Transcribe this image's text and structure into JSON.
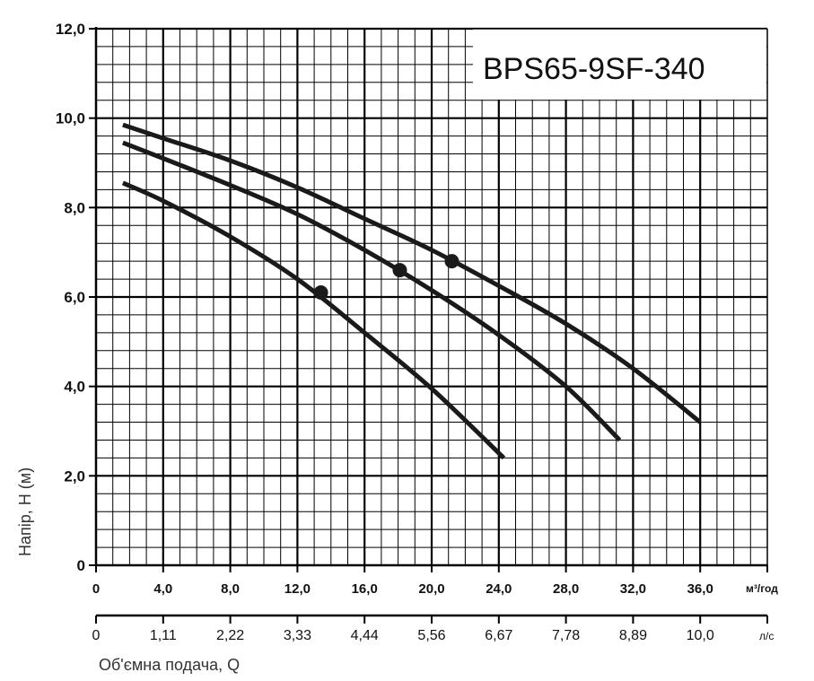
{
  "chart_data": {
    "type": "line",
    "title": "BPS65-9SF-340",
    "ylabel": "Напір, H (м)",
    "xlabel": "Об'ємна  подача, Q",
    "x_unit": "м³/год",
    "x2_unit": "л/с",
    "xlim": [
      0,
      40
    ],
    "ylim": [
      0,
      12
    ],
    "grid": true,
    "y_ticks": [
      "0",
      "2,0",
      "4,0",
      "6,0",
      "8,0",
      "10,0",
      "12,0"
    ],
    "x_ticks": [
      "0",
      "4,0",
      "8,0",
      "12,0",
      "16,0",
      "20,0",
      "24,0",
      "28,0",
      "32,0",
      "36,0"
    ],
    "x2_ticks": [
      "0",
      "1,11",
      "2,22",
      "3,33",
      "4,44",
      "5,56",
      "6,67",
      "7,78",
      "8,89",
      "10,0"
    ],
    "series": [
      {
        "x": [
          1.6,
          4,
          8,
          12,
          16,
          20,
          24.3
        ],
        "values": [
          8.55,
          8.15,
          7.35,
          6.4,
          5.2,
          3.95,
          2.4
        ],
        "marker": {
          "x": 13.4,
          "y": 6.1
        }
      },
      {
        "x": [
          1.6,
          4,
          8,
          12,
          16,
          20,
          24,
          28,
          31.2
        ],
        "values": [
          9.45,
          9.1,
          8.5,
          7.85,
          7.05,
          6.15,
          5.15,
          4.0,
          2.8
        ],
        "marker": {
          "x": 18.1,
          "y": 6.6
        }
      },
      {
        "x": [
          1.6,
          4,
          8,
          12,
          16,
          20,
          24,
          28,
          32,
          36
        ],
        "values": [
          9.85,
          9.55,
          9.05,
          8.45,
          7.75,
          7.05,
          6.25,
          5.4,
          4.4,
          3.2
        ],
        "marker": {
          "x": 21.2,
          "y": 6.8
        }
      }
    ],
    "colors": {
      "curve": "#1a1a1a",
      "grid": "#000000",
      "background": "#ffffff"
    }
  }
}
